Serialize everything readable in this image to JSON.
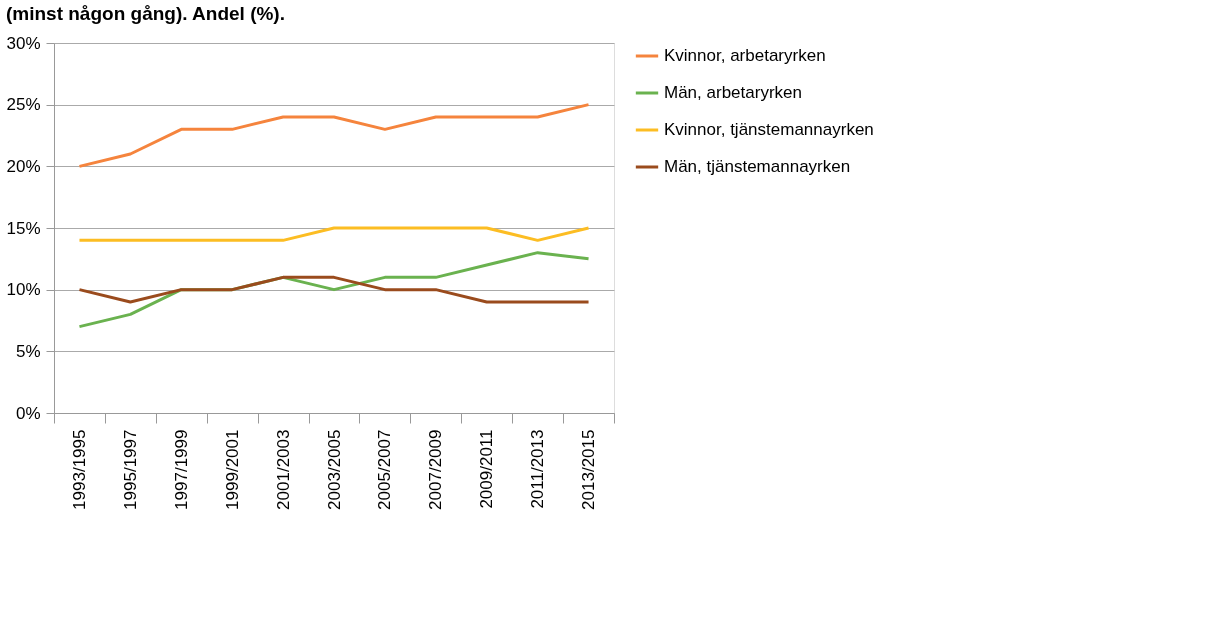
{
  "chart_data": {
    "type": "line",
    "title": "(minst någon gång). Andel (%).",
    "categories": [
      "1993/1995",
      "1995/1997",
      "1997/1999",
      "1999/2001",
      "2001/2003",
      "2003/2005",
      "2005/2007",
      "2007/2009",
      "2009/2011",
      "2011/2013",
      "2013/2015"
    ],
    "series": [
      {
        "name": "Kvinnor, arbetaryrken",
        "color": "#f5843d",
        "values": [
          20,
          21,
          23,
          23,
          24,
          24,
          23,
          24,
          24,
          24,
          25
        ]
      },
      {
        "name": "Män, arbetaryrken",
        "color": "#6ab24f",
        "values": [
          7,
          8,
          10,
          10,
          11,
          10,
          11,
          11,
          12,
          13,
          12.5
        ]
      },
      {
        "name": "Kvinnor, tjänstemannayrken",
        "color": "#fcbd23",
        "values": [
          14,
          14,
          14,
          14,
          14,
          15,
          15,
          15,
          15,
          14,
          15
        ]
      },
      {
        "name": "Män, tjänstemannayrken",
        "color": "#9a4b1d",
        "values": [
          10,
          9,
          10,
          10,
          11,
          11,
          10,
          10,
          9,
          9,
          9
        ]
      }
    ],
    "ylim": [
      0,
      30
    ],
    "yticks": [
      {
        "value": 0,
        "label": "0%"
      },
      {
        "value": 5,
        "label": "5%"
      },
      {
        "value": 10,
        "label": "10%"
      },
      {
        "value": 15,
        "label": "15%"
      },
      {
        "value": 20,
        "label": "20%"
      },
      {
        "value": 25,
        "label": "25%"
      },
      {
        "value": 30,
        "label": "30%"
      }
    ],
    "grid": "y",
    "legend": "right",
    "marker": "none",
    "line_style": "solid"
  }
}
